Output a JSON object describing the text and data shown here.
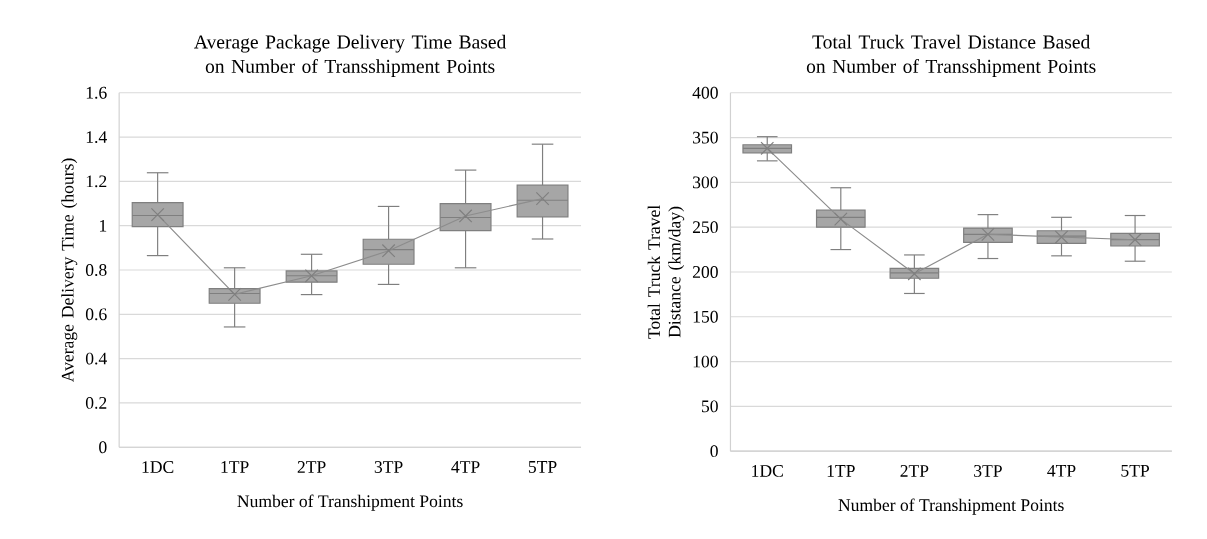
{
  "chart_data": [
    {
      "type": "box",
      "title": "Average Package Delivery Time Based on Number of Transshipment Points",
      "xlabel": "Number of Transhipment Points",
      "ylabel": "Average Delivery Time (hours)",
      "categories": [
        "1DC",
        "1TP",
        "2TP",
        "3TP",
        "4TP",
        "5TP"
      ],
      "ylim": [
        0,
        1.6
      ],
      "yticks": [
        0,
        0.2,
        0.4,
        0.6,
        0.8,
        1,
        1.2,
        1.4,
        1.6
      ],
      "grid": "y",
      "series": [
        {
          "color": "#a6a6a6",
          "boxes": [
            {
              "low": 0.865,
              "q1": 0.996,
              "median": 1.046,
              "q3": 1.104,
              "high": 1.239,
              "mean": 1.05
            },
            {
              "low": 0.543,
              "q1": 0.65,
              "median": 0.694,
              "q3": 0.716,
              "high": 0.81,
              "mean": 0.69
            },
            {
              "low": 0.689,
              "q1": 0.745,
              "median": 0.774,
              "q3": 0.796,
              "high": 0.871,
              "mean": 0.774
            },
            {
              "low": 0.735,
              "q1": 0.826,
              "median": 0.892,
              "q3": 0.939,
              "high": 1.087,
              "mean": 0.887
            },
            {
              "low": 0.81,
              "q1": 0.978,
              "median": 1.037,
              "q3": 1.1,
              "high": 1.251,
              "mean": 1.044
            },
            {
              "low": 0.94,
              "q1": 1.04,
              "median": 1.115,
              "q3": 1.183,
              "high": 1.368,
              "mean": 1.122
            }
          ]
        },
        {
          "type": "line",
          "color": "#8c8c8c",
          "values": [
            1.05,
            0.69,
            0.774,
            0.887,
            1.044,
            1.122
          ]
        }
      ]
    },
    {
      "type": "box",
      "title": "Total Truck Travel Distance Based on Number of Transshipment Points",
      "xlabel": "Number of Transhipment Points",
      "ylabel": "Total Truck Travel Distance (km/day)",
      "categories": [
        "1DC",
        "1TP",
        "2TP",
        "3TP",
        "4TP",
        "5TP"
      ],
      "ylim": [
        0,
        400
      ],
      "yticks": [
        0,
        50,
        100,
        150,
        200,
        250,
        300,
        350,
        400
      ],
      "grid": "y",
      "series": [
        {
          "color": "#a6a6a6",
          "boxes": [
            {
              "low": 324,
              "q1": 333,
              "median": 338,
              "q3": 342,
              "high": 351,
              "mean": 338
            },
            {
              "low": 225,
              "q1": 250,
              "median": 261,
              "q3": 269,
              "high": 294,
              "mean": 259
            },
            {
              "low": 176,
              "q1": 193,
              "median": 199,
              "q3": 204,
              "high": 219,
              "mean": 198
            },
            {
              "low": 215,
              "q1": 233,
              "median": 242,
              "q3": 249,
              "high": 264,
              "mean": 242
            },
            {
              "low": 218,
              "q1": 232,
              "median": 240,
              "q3": 246,
              "high": 261,
              "mean": 239
            },
            {
              "low": 212,
              "q1": 229,
              "median": 236,
              "q3": 243,
              "high": 263,
              "mean": 236
            }
          ]
        },
        {
          "type": "line",
          "color": "#8c8c8c",
          "values": [
            338,
            259,
            198,
            242,
            239,
            236
          ]
        }
      ]
    }
  ]
}
